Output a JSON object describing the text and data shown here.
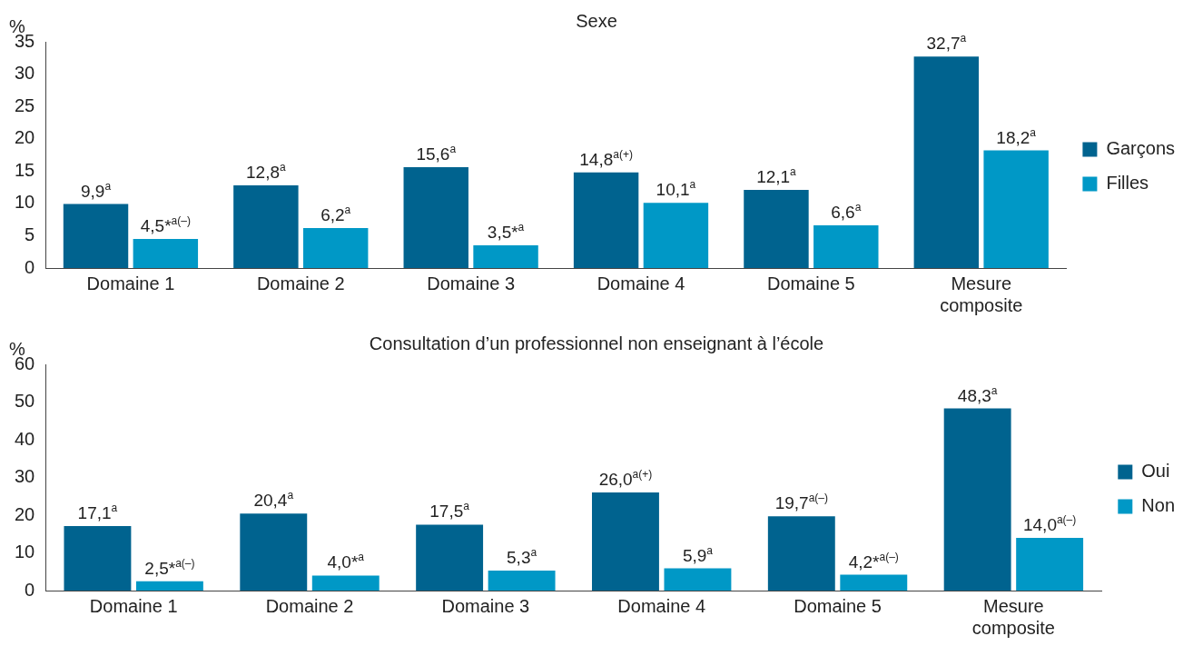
{
  "chart_data": [
    {
      "type": "bar",
      "title": "Sexe",
      "ylabel": "%",
      "categories": [
        "Domaine 1",
        "Domaine 2",
        "Domaine 3",
        "Domaine 4",
        "Domaine 5",
        "Mesure composite"
      ],
      "series": [
        {
          "name": "Garçons",
          "color": "#00638f",
          "values": [
            9.9,
            12.8,
            15.6,
            14.8,
            12.1,
            32.7
          ],
          "value_labels": [
            "9,9$^{a}$",
            "12,8$^{a}$",
            "15,6$^{a}$",
            "14,8$^{a(+)}$",
            "12,1$^{a}$",
            "32,7$^{a}$"
          ]
        },
        {
          "name": "Filles",
          "color": "#0098c6",
          "values": [
            4.5,
            6.2,
            3.5,
            10.1,
            6.6,
            18.2
          ],
          "value_labels": [
            "4,5*$^{a(–)}$",
            "6,2$^{a}$",
            "3,5*$^{a}$",
            "10,1$^{a}$",
            "6,6$^{a}$",
            "18,2$^{a}$"
          ]
        }
      ],
      "ylim": [
        0,
        35
      ],
      "yticks": [
        0,
        5,
        10,
        15,
        20,
        25,
        30,
        35
      ],
      "grid": false,
      "legend": "right"
    },
    {
      "type": "bar",
      "title": "Consultation d’un professionnel non enseignant à l’école",
      "ylabel": "%",
      "categories": [
        "Domaine 1",
        "Domaine 2",
        "Domaine 3",
        "Domaine 4",
        "Domaine 5",
        "Mesure composite"
      ],
      "series": [
        {
          "name": "Oui",
          "color": "#00638f",
          "values": [
            17.1,
            20.4,
            17.5,
            26.0,
            19.7,
            48.3
          ],
          "value_labels": [
            "17,1$^{a}$",
            "20,4$^{a}$",
            "17,5$^{a}$",
            "26,0$^{a(+)}$",
            "19,7$^{a(–)}$",
            "48,3$^{a}$"
          ]
        },
        {
          "name": "Non",
          "color": "#0098c6",
          "values": [
            2.5,
            4.0,
            5.3,
            5.9,
            4.2,
            14.0
          ],
          "value_labels": [
            "2,5*$^{a(–)}$",
            "4,0*$^{a}$",
            "5,3$^{a}$",
            "5,9$^{a}$",
            "4,2*$^{a(–)}$",
            "14,0$^{a(–)}$"
          ]
        }
      ],
      "ylim": [
        0,
        60
      ],
      "yticks": [
        0,
        10,
        20,
        30,
        40,
        50,
        60
      ],
      "grid": false,
      "legend": "right"
    }
  ]
}
